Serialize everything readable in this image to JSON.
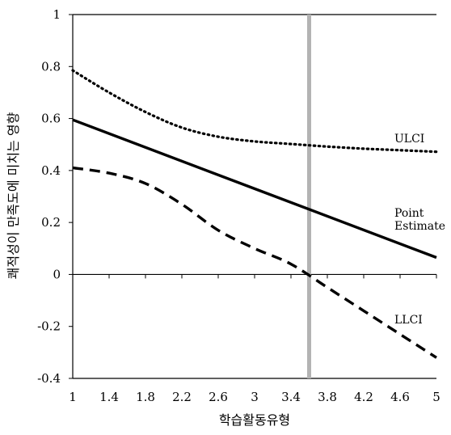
{
  "chart_data": {
    "type": "line",
    "xlabel": "학습활동유형",
    "ylabel": "쾌적성이 만족도에 미치는 영향",
    "xlim": [
      1,
      5
    ],
    "ylim": [
      -0.4,
      1
    ],
    "x_ticks": [
      "1",
      "1.4",
      "1.8",
      "2.2",
      "2.6",
      "3",
      "3.4",
      "3.8",
      "4.2",
      "4.6",
      "5"
    ],
    "y_ticks": [
      "1",
      "0.8",
      "0.6",
      "0.4",
      "0.2",
      "0",
      "-0.2",
      "-0.4"
    ],
    "grid": false,
    "reference_line": {
      "x": 3.6,
      "color": "#b3b3b3"
    },
    "series": [
      {
        "name": "ULCI",
        "style": "dotted",
        "color": "#000000",
        "label": [
          "ULCI"
        ],
        "x": [
          1,
          1.4,
          1.8,
          2.2,
          2.6,
          3,
          3.4,
          3.8,
          4.2,
          4.6,
          5
        ],
        "y": [
          0.785,
          0.7,
          0.625,
          0.565,
          0.53,
          0.512,
          0.502,
          0.492,
          0.484,
          0.478,
          0.472
        ]
      },
      {
        "name": "Point Estimate",
        "style": "solid",
        "color": "#000000",
        "label": [
          "Point",
          "Estimate"
        ],
        "x": [
          1,
          5
        ],
        "y": [
          0.595,
          0.065
        ]
      },
      {
        "name": "LLCI",
        "style": "dashed",
        "color": "#000000",
        "label": [
          "LLCI"
        ],
        "x": [
          1,
          1.4,
          1.8,
          2.2,
          2.6,
          3,
          3.4,
          3.8,
          4.2,
          4.6,
          5
        ],
        "y": [
          0.41,
          0.39,
          0.35,
          0.27,
          0.17,
          0.1,
          0.04,
          -0.05,
          -0.14,
          -0.23,
          -0.32
        ]
      }
    ]
  }
}
